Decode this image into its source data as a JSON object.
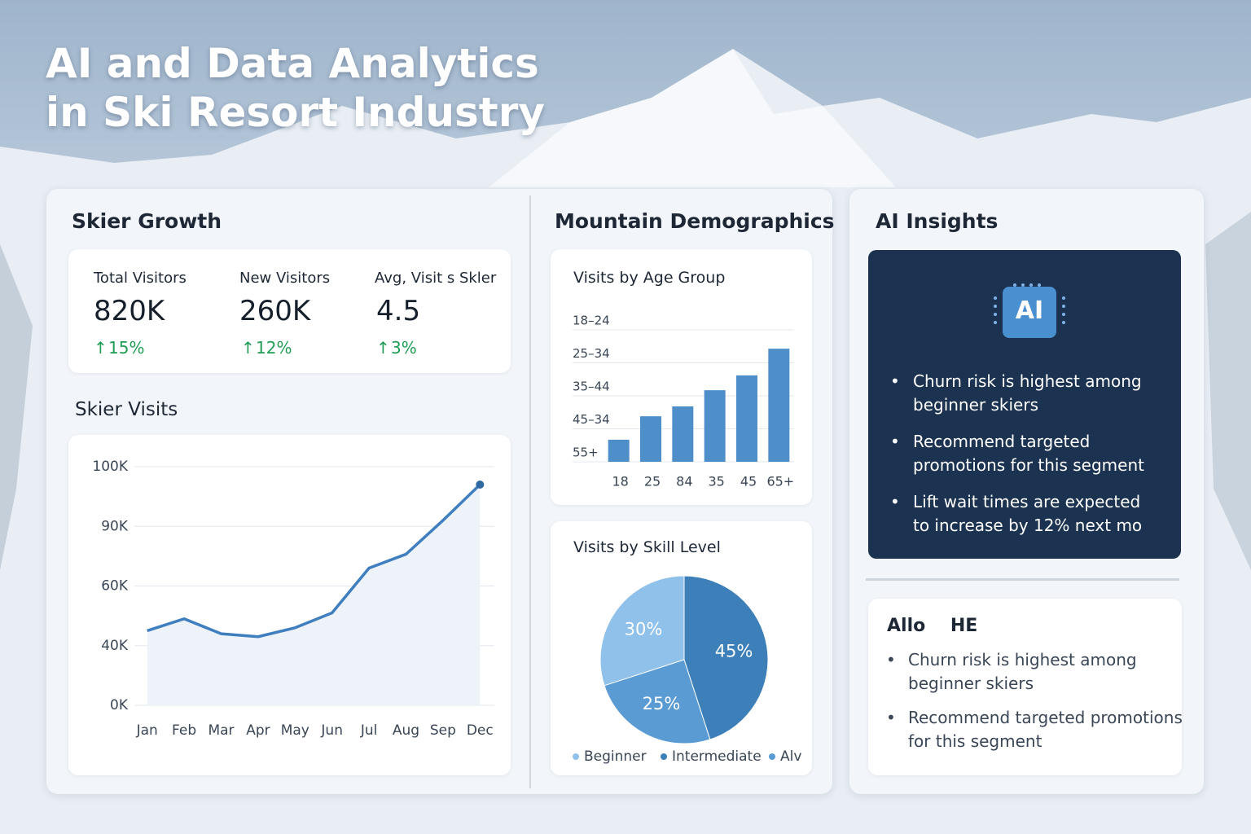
{
  "title": "AI and Data Analytics in Ski Resort Industry",
  "skier_growth": {
    "heading": "Skier Growth",
    "kpis": [
      {
        "label": "Total Visitors",
        "value": "820K",
        "change": "15%"
      },
      {
        "label": "New Visitors",
        "value": "260K",
        "change": "12%"
      },
      {
        "label": "Avg, Visit s Skler",
        "value": "4.5",
        "change": "3%"
      }
    ],
    "visits_heading": "Skier Visits"
  },
  "mountain_demographics": {
    "heading": "Mountain Demographics"
  },
  "ai_insights": {
    "heading": "AI Insights",
    "badge": "AI",
    "bullets": [
      [
        "Churn risk is highest among",
        "beginner skiers"
      ],
      [
        "Recommend targeted",
        "promotions for this segment"
      ],
      [
        "Lift wait times are expected",
        "to increase by 12% next mo"
      ]
    ]
  },
  "notes": {
    "heading": "Allo    HE",
    "bullets": [
      [
        "Churn risk is highest among",
        "beginner skiers"
      ],
      [
        "Recommend targeted promotions",
        "for this segment"
      ]
    ]
  },
  "chart_data": [
    {
      "type": "line",
      "categories": [
        "Jan",
        "Feb",
        "Mar",
        "Apr",
        "May",
        "Jun",
        "Jul",
        "Aug",
        "Sep",
        "Dec"
      ],
      "values": [
        45,
        49,
        44,
        43,
        46,
        51,
        69,
        76,
        91,
        97
      ],
      "color": "#3f7fbf",
      "ylim": [
        0,
        100
      ],
      "yticks": [
        {
          "value": 0,
          "label": "0K"
        },
        {
          "value": 40,
          "label": "40K"
        },
        {
          "value": 60,
          "label": "60K"
        },
        {
          "value": 90,
          "label": "90K"
        },
        {
          "value": 100,
          "label": "100K"
        }
      ],
      "grid": true
    },
    {
      "type": "bar",
      "title": "Visits by Age Group",
      "categories": [
        "18",
        "25",
        "84",
        "35",
        "45",
        "65+"
      ],
      "values": [
        0.67,
        1.38,
        1.68,
        2.17,
        2.62,
        3.43
      ],
      "color": "#4f8fc9",
      "ylim": [
        0,
        5
      ],
      "yticks": [
        {
          "value": 0,
          "label": "55+"
        },
        {
          "value": 1,
          "label": "45–34"
        },
        {
          "value": 2,
          "label": "35–44"
        },
        {
          "value": 3,
          "label": "25–34"
        },
        {
          "value": 4,
          "label": "18–24"
        }
      ],
      "grid": true
    },
    {
      "type": "pie",
      "title": "Visits by Skill Level",
      "categories": [
        "Beginner",
        "Intermediate",
        "Alv"
      ],
      "values": [
        30,
        45,
        25
      ],
      "value_labels": [
        "30%",
        "45%",
        "25%"
      ],
      "colors": [
        "#8fc1ea",
        "#3d7fb8",
        "#5a9bd4"
      ]
    }
  ]
}
